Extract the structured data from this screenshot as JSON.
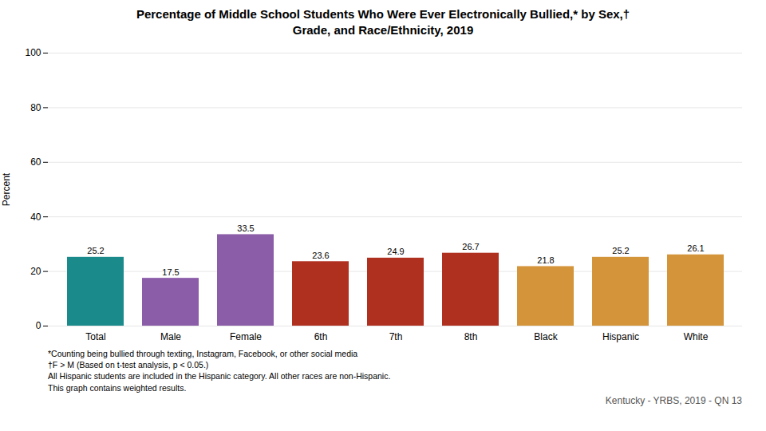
{
  "chart_data": {
    "type": "bar",
    "title": "Percentage of Middle School Students Who Were Ever Electronically Bullied,* by Sex,†\nGrade, and Race/Ethnicity, 2019",
    "categories": [
      "Total",
      "Male",
      "Female",
      "6th",
      "7th",
      "8th",
      "Black",
      "Hispanic",
      "White"
    ],
    "values": [
      25.2,
      17.5,
      33.5,
      23.6,
      24.9,
      26.7,
      21.8,
      25.2,
      26.1
    ],
    "colors": [
      "#1a8a8a",
      "#8b5ca8",
      "#8b5ca8",
      "#b03020",
      "#b03020",
      "#b03020",
      "#d4943a",
      "#d4943a",
      "#d4943a"
    ],
    "ylabel": "Percent",
    "ylim": [
      0,
      100
    ],
    "yticks": [
      0,
      20,
      40,
      60,
      80,
      100
    ],
    "grid": true,
    "data_labels": true,
    "footnotes": [
      "*Counting being bullied through texting, Instagram, Facebook, or other social media",
      "†F > M (Based on t-test analysis, p < 0.05.)",
      "All Hispanic students are included in the Hispanic category.  All other races are non-Hispanic.",
      "This graph contains weighted results."
    ],
    "source": "Kentucky - YRBS, 2019 - QN 13"
  }
}
